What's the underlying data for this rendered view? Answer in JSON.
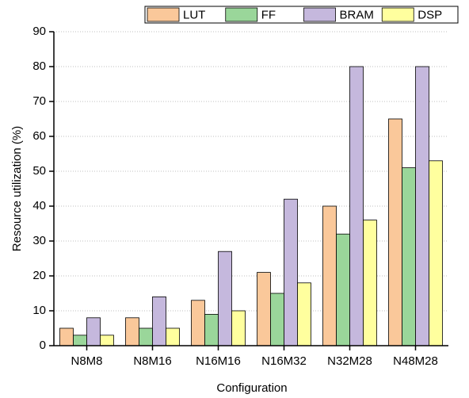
{
  "chart_data": {
    "type": "bar",
    "x_label": "Configuration",
    "y_label": "Resource utilization (%)",
    "categories": [
      "N8M8",
      "N8M16",
      "N16M16",
      "N16M32",
      "N32M28",
      "N48M28"
    ],
    "series": [
      {
        "name": "LUT",
        "color": "#fac89a",
        "values": [
          5,
          8,
          13,
          21,
          40,
          65
        ]
      },
      {
        "name": "FF",
        "color": "#9ad69a",
        "values": [
          3,
          5,
          9,
          15,
          32,
          51
        ]
      },
      {
        "name": "BRAM",
        "color": "#c5b8dd",
        "values": [
          8,
          14,
          27,
          42,
          80,
          80
        ]
      },
      {
        "name": "DSP",
        "color": "#ffff9e",
        "values": [
          3,
          5,
          10,
          18,
          36,
          53
        ]
      }
    ],
    "ylim": [
      0,
      90
    ],
    "yticks": [
      0,
      10,
      20,
      30,
      40,
      50,
      60,
      70,
      80,
      90
    ],
    "grid": true,
    "legend": "top"
  }
}
